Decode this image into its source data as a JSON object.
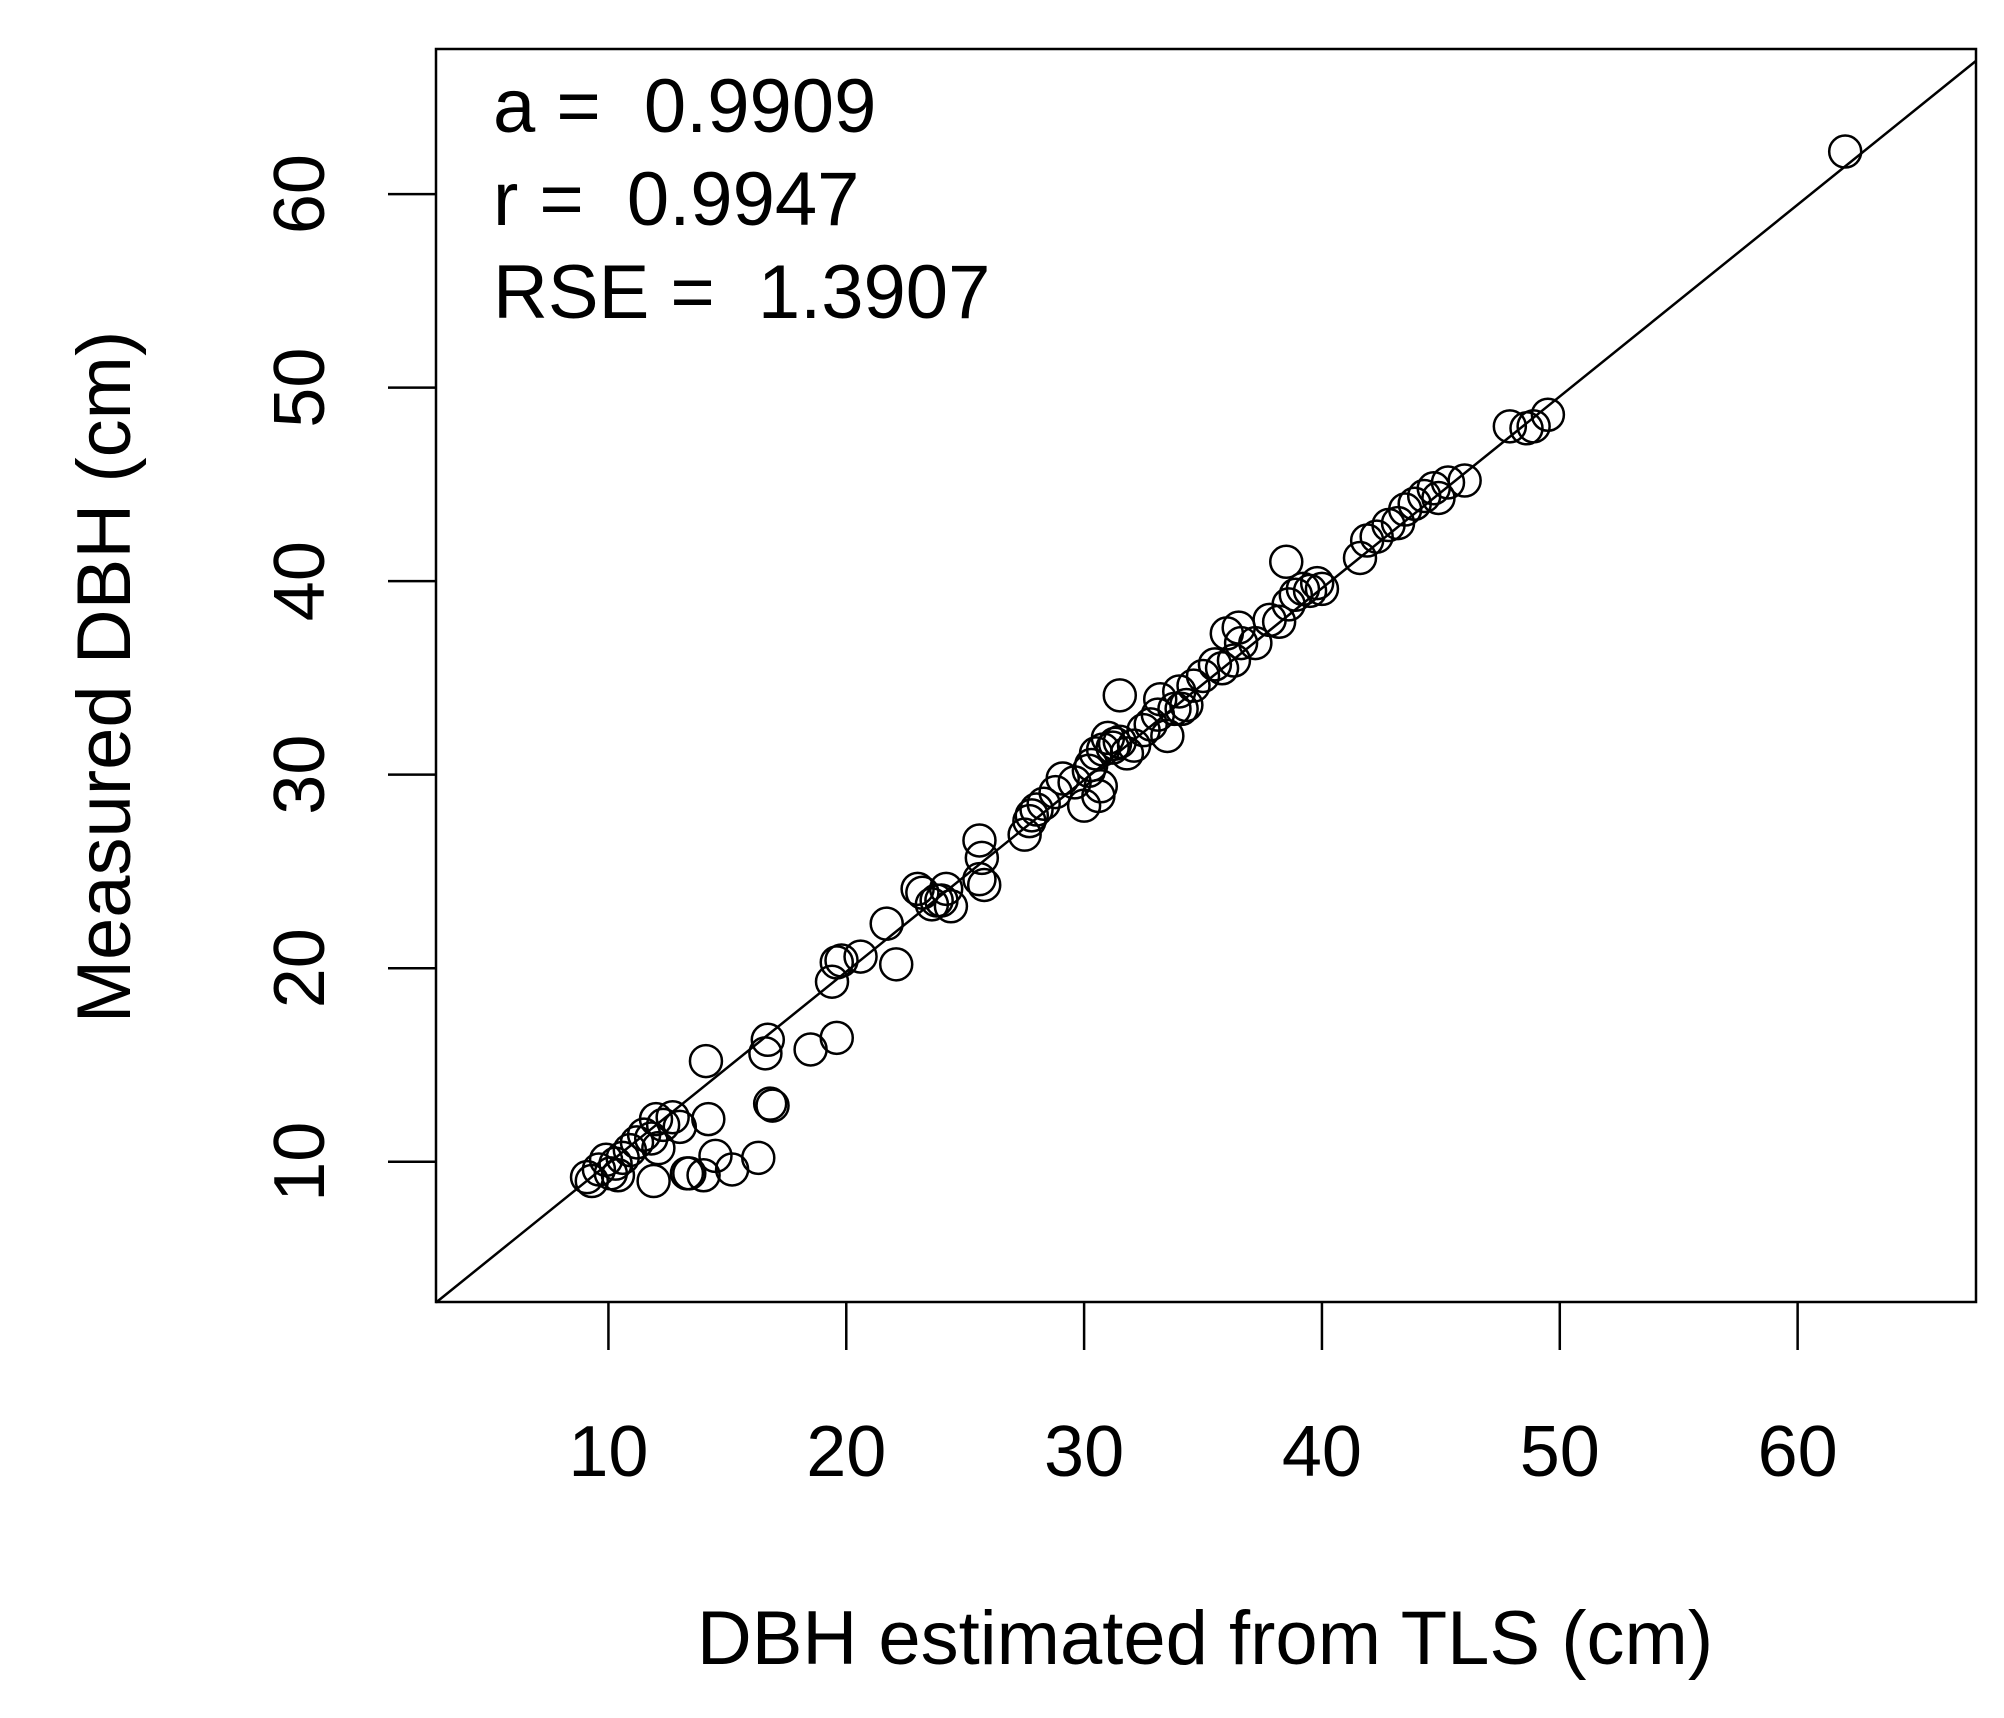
{
  "chart_data": {
    "type": "scatter",
    "xlabel": "DBH estimated from TLS (cm)",
    "ylabel": "Measured DBH (cm)",
    "xlim": [
      2.75,
      67.5
    ],
    "ylim": [
      2.75,
      67.5
    ],
    "xticks": [
      10,
      20,
      30,
      40,
      50,
      60
    ],
    "yticks": [
      10,
      20,
      30,
      40,
      50,
      60
    ],
    "grid": false,
    "box": true,
    "annotations": [
      {
        "label": "a = ",
        "value": "0.9909"
      },
      {
        "label": "r = ",
        "value": "0.9947"
      },
      {
        "label": "RSE = ",
        "value": "1.3907"
      }
    ],
    "reference_line": {
      "slope": 0.9909,
      "intercept": 0
    },
    "series": [
      {
        "marker": "open-circle",
        "x": [
          9.1,
          9.3,
          9.6,
          9.9,
          10.1,
          10.3,
          10.6,
          10.9,
          11.2,
          11.5,
          11.8,
          12.1,
          12.3,
          12.7,
          13.0,
          13.3,
          10.4,
          11.9,
          12.0,
          13.4,
          14.0,
          14.5,
          15.2,
          16.3,
          14.2,
          14.1,
          16.7,
          16.6,
          16.9,
          16.8,
          18.5,
          19.6,
          19.4,
          19.6,
          19.8,
          20.6,
          21.7,
          22.1,
          23.2,
          23.6,
          23.8,
          24.0,
          24.4,
          25.6,
          25.7,
          25.8,
          25.6,
          27.5,
          27.8,
          28.0,
          28.3,
          28.8,
          29.1,
          29.6,
          30.0,
          30.2,
          30.5,
          30.7,
          30.3,
          30.6,
          30.8,
          31.0,
          31.3,
          31.5,
          31.2,
          31.8,
          32.1,
          32.5,
          32.8,
          33.2,
          33.5,
          33.8,
          34.0,
          34.3,
          34.6,
          35.0,
          35.5,
          35.8,
          36.0,
          36.3,
          36.6,
          37.2,
          37.8,
          38.2,
          38.6,
          38.9,
          39.2,
          39.5,
          39.8,
          40.0,
          38.5,
          41.6,
          41.9,
          42.3,
          42.8,
          43.2,
          43.5,
          43.9,
          44.3,
          44.7,
          44.9,
          45.3,
          46.0,
          47.9,
          48.6,
          48.9,
          49.5,
          62.0,
          31.5,
          36.5,
          24.2,
          23.0,
          27.7,
          33.1,
          34.1
        ],
        "y": [
          9.2,
          9.0,
          9.6,
          10.1,
          9.4,
          9.9,
          10.2,
          10.6,
          11.0,
          11.4,
          11.2,
          10.7,
          11.9,
          12.3,
          11.8,
          9.4,
          9.3,
          9.0,
          12.2,
          9.4,
          9.3,
          10.3,
          9.6,
          10.2,
          12.2,
          15.2,
          16.3,
          15.6,
          12.9,
          13.0,
          15.8,
          16.4,
          19.3,
          20.3,
          20.4,
          20.6,
          22.3,
          20.2,
          23.9,
          23.3,
          23.5,
          23.5,
          23.2,
          26.6,
          25.7,
          24.3,
          24.6,
          26.9,
          27.9,
          28.2,
          28.5,
          29.1,
          29.8,
          29.6,
          28.4,
          30.2,
          31.1,
          29.4,
          30.5,
          28.9,
          31.3,
          31.9,
          31.6,
          31.7,
          31.4,
          31.1,
          31.5,
          32.3,
          32.6,
          33.9,
          32.0,
          33.4,
          34.3,
          33.6,
          34.6,
          35.1,
          35.7,
          35.5,
          37.3,
          35.9,
          36.8,
          36.8,
          38.0,
          37.9,
          38.8,
          39.3,
          39.6,
          39.5,
          39.9,
          39.6,
          41.0,
          41.2,
          42.1,
          42.3,
          42.9,
          43.0,
          43.7,
          44.0,
          44.4,
          44.8,
          44.3,
          45.1,
          45.2,
          48.0,
          47.9,
          48.0,
          48.6,
          62.2,
          34.1,
          37.6,
          24.1,
          24.1,
          27.6,
          33.1,
          33.4
        ]
      }
    ]
  }
}
